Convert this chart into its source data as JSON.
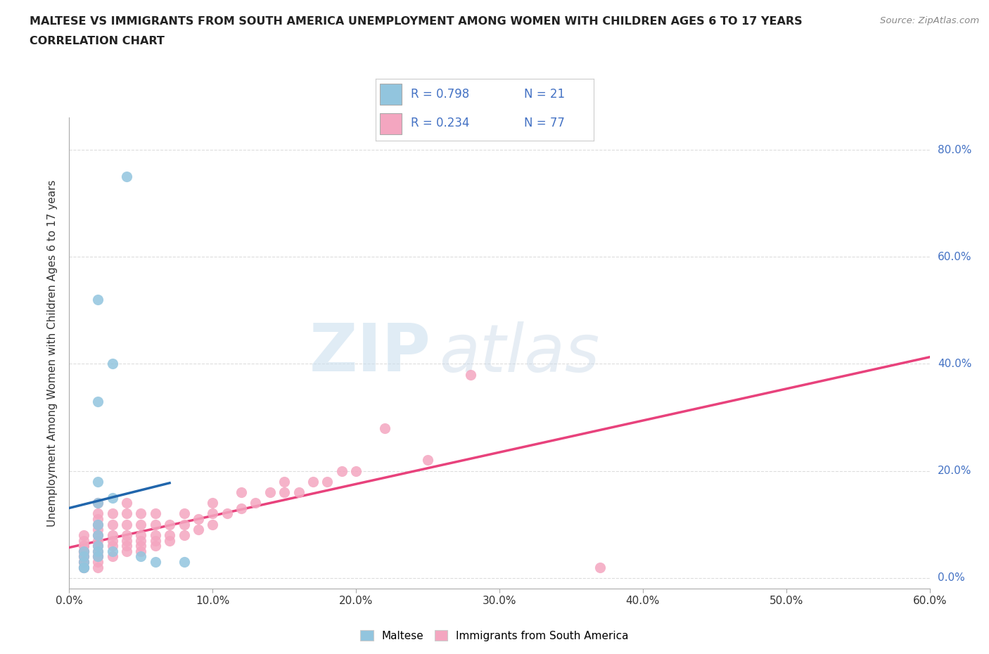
{
  "title_line1": "MALTESE VS IMMIGRANTS FROM SOUTH AMERICA UNEMPLOYMENT AMONG WOMEN WITH CHILDREN AGES 6 TO 17 YEARS",
  "title_line2": "CORRELATION CHART",
  "source": "Source: ZipAtlas.com",
  "ylabel": "Unemployment Among Women with Children Ages 6 to 17 years",
  "xlim": [
    0.0,
    0.6
  ],
  "ylim": [
    -0.02,
    0.86
  ],
  "ytick_positions": [
    0.0,
    0.2,
    0.4,
    0.6,
    0.8
  ],
  "ytick_labels": [
    "0.0%",
    "20.0%",
    "40.0%",
    "60.0%",
    "80.0%"
  ],
  "xtick_positions": [
    0.0,
    0.1,
    0.2,
    0.3,
    0.4,
    0.5,
    0.6
  ],
  "xtick_labels": [
    "0.0%",
    "10.0%",
    "20.0%",
    "30.0%",
    "40.0%",
    "50.0%",
    "60.0%"
  ],
  "legend_r1": "R = 0.798",
  "legend_n1": "N = 21",
  "legend_r2": "R = 0.234",
  "legend_n2": "N = 77",
  "color_maltese": "#92c5de",
  "color_south_america": "#f4a6c0",
  "color_maltese_line": "#2166ac",
  "color_south_america_line": "#e8427c",
  "background_color": "#ffffff",
  "watermark_zip": "ZIP",
  "watermark_atlas": "atlas",
  "maltese_x": [
    0.01,
    0.01,
    0.01,
    0.01,
    0.01,
    0.02,
    0.02,
    0.02,
    0.02,
    0.02,
    0.02,
    0.02,
    0.02,
    0.02,
    0.03,
    0.03,
    0.03,
    0.04,
    0.05,
    0.06,
    0.08
  ],
  "maltese_y": [
    0.02,
    0.02,
    0.03,
    0.04,
    0.05,
    0.04,
    0.05,
    0.06,
    0.08,
    0.1,
    0.14,
    0.18,
    0.33,
    0.52,
    0.05,
    0.15,
    0.4,
    0.75,
    0.04,
    0.03,
    0.03
  ],
  "sa_x": [
    0.01,
    0.01,
    0.01,
    0.01,
    0.01,
    0.01,
    0.01,
    0.01,
    0.01,
    0.01,
    0.01,
    0.01,
    0.01,
    0.02,
    0.02,
    0.02,
    0.02,
    0.02,
    0.02,
    0.02,
    0.02,
    0.02,
    0.02,
    0.02,
    0.02,
    0.02,
    0.03,
    0.03,
    0.03,
    0.03,
    0.03,
    0.03,
    0.04,
    0.04,
    0.04,
    0.04,
    0.04,
    0.04,
    0.04,
    0.05,
    0.05,
    0.05,
    0.05,
    0.05,
    0.05,
    0.06,
    0.06,
    0.06,
    0.06,
    0.06,
    0.07,
    0.07,
    0.07,
    0.08,
    0.08,
    0.08,
    0.09,
    0.09,
    0.1,
    0.1,
    0.1,
    0.11,
    0.12,
    0.12,
    0.13,
    0.14,
    0.15,
    0.15,
    0.16,
    0.17,
    0.18,
    0.19,
    0.2,
    0.22,
    0.25,
    0.28,
    0.37
  ],
  "sa_y": [
    0.02,
    0.02,
    0.03,
    0.03,
    0.04,
    0.04,
    0.05,
    0.05,
    0.05,
    0.06,
    0.06,
    0.07,
    0.08,
    0.02,
    0.03,
    0.04,
    0.04,
    0.05,
    0.06,
    0.07,
    0.08,
    0.09,
    0.1,
    0.11,
    0.12,
    0.14,
    0.04,
    0.06,
    0.07,
    0.08,
    0.1,
    0.12,
    0.05,
    0.06,
    0.07,
    0.08,
    0.1,
    0.12,
    0.14,
    0.05,
    0.06,
    0.07,
    0.08,
    0.1,
    0.12,
    0.06,
    0.07,
    0.08,
    0.1,
    0.12,
    0.07,
    0.08,
    0.1,
    0.08,
    0.1,
    0.12,
    0.09,
    0.11,
    0.1,
    0.12,
    0.14,
    0.12,
    0.13,
    0.16,
    0.14,
    0.16,
    0.16,
    0.18,
    0.16,
    0.18,
    0.18,
    0.2,
    0.2,
    0.28,
    0.22,
    0.38,
    0.02
  ]
}
